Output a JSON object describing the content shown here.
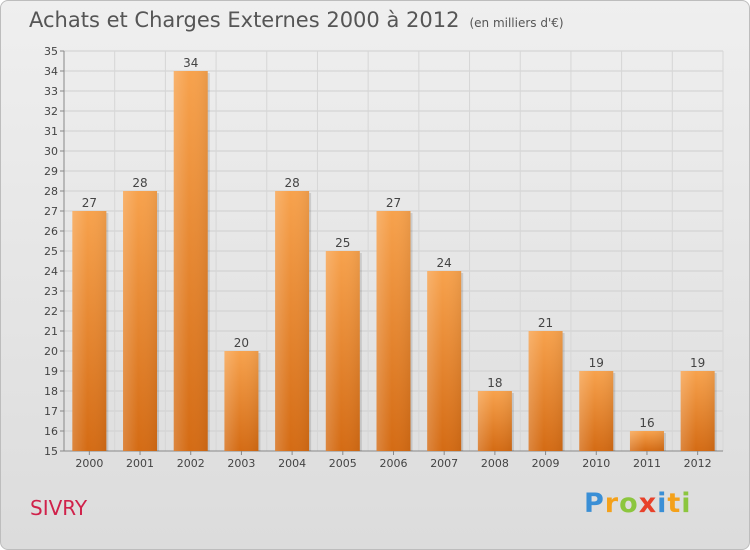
{
  "header": {
    "title": "Achats et Charges Externes 2000 à 2012",
    "unit": "(en milliers d'€)"
  },
  "commune": "SIVRY",
  "logo": {
    "text": "Proxiti",
    "letters": [
      {
        "ch": "P",
        "color": "#3a8fd6"
      },
      {
        "ch": "r",
        "color": "#f4a11a"
      },
      {
        "ch": "o",
        "color": "#8cc63e"
      },
      {
        "ch": "x",
        "color": "#e8412a"
      },
      {
        "ch": "i",
        "color": "#3a8fd6"
      },
      {
        "ch": "t",
        "color": "#f4a11a"
      },
      {
        "ch": "i",
        "color": "#8cc63e"
      }
    ]
  },
  "chart_data": {
    "type": "bar",
    "categories": [
      "2000",
      "2001",
      "2002",
      "2003",
      "2004",
      "2005",
      "2006",
      "2007",
      "2008",
      "2009",
      "2010",
      "2011",
      "2012"
    ],
    "values": [
      27,
      28,
      34,
      20,
      28,
      25,
      27,
      24,
      18,
      21,
      19,
      16,
      19
    ],
    "ylim": [
      15,
      35
    ],
    "yticks": [
      15,
      16,
      17,
      18,
      19,
      20,
      21,
      22,
      23,
      24,
      25,
      26,
      27,
      28,
      29,
      30,
      31,
      32,
      33,
      34,
      35
    ],
    "grid": true,
    "bar_color_top": "#f7a24d",
    "bar_color_bottom": "#d46b14"
  }
}
